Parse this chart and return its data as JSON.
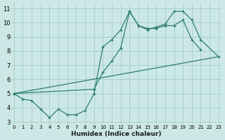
{
  "xlabel": "Humidex (Indice chaleur)",
  "bg_color": "#cce8e6",
  "grid_color": "#aad0cc",
  "line_color": "#2e7d6e",
  "xlim": [
    -0.3,
    23.3
  ],
  "ylim": [
    2.8,
    11.4
  ],
  "yticks": [
    3,
    4,
    5,
    6,
    7,
    8,
    9,
    10,
    11
  ],
  "xticks": [
    0,
    1,
    2,
    3,
    4,
    5,
    6,
    7,
    8,
    9,
    10,
    11,
    12,
    13,
    14,
    15,
    16,
    17,
    18,
    19,
    20,
    21,
    22,
    23
  ],
  "line1_x": [
    0,
    1,
    2,
    3,
    4,
    5,
    6,
    7,
    8,
    9,
    10,
    11,
    12,
    13,
    14,
    15,
    16,
    17,
    18,
    19,
    20,
    21
  ],
  "line1_y": [
    5.0,
    4.6,
    4.5,
    3.9,
    3.3,
    3.9,
    3.5,
    3.5,
    3.8,
    5.0,
    8.3,
    8.8,
    9.5,
    10.8,
    9.8,
    9.6,
    9.6,
    9.8,
    9.8,
    10.2,
    8.8,
    8.1
  ],
  "line2_x": [
    0,
    23
  ],
  "line2_y": [
    5.0,
    7.6
  ],
  "line3_x": [
    0,
    9,
    10,
    11,
    12,
    13,
    14,
    15,
    16,
    17,
    18,
    19,
    20,
    21,
    23
  ],
  "line3_y": [
    5.0,
    5.3,
    6.5,
    7.3,
    8.2,
    10.8,
    9.8,
    9.5,
    9.7,
    9.9,
    10.8,
    10.8,
    10.2,
    8.8,
    7.6
  ]
}
